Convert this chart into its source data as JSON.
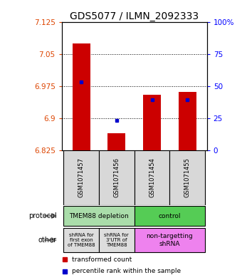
{
  "title": "GDS5077 / ILMN_2092333",
  "samples": [
    "GSM1071457",
    "GSM1071456",
    "GSM1071454",
    "GSM1071455"
  ],
  "red_values": [
    7.075,
    6.865,
    6.955,
    6.962
  ],
  "blue_values": [
    6.985,
    6.895,
    6.943,
    6.943
  ],
  "ymin": 6.825,
  "ymax": 7.125,
  "yticks_left": [
    7.125,
    7.05,
    6.975,
    6.9,
    6.825
  ],
  "yticks_right_vals": [
    100,
    75,
    50,
    25,
    0
  ],
  "yticks_right_labels": [
    "100%",
    "75",
    "50",
    "25",
    "0"
  ],
  "bar_color": "#cc0000",
  "blue_color": "#0000cc",
  "sample_bg_color": "#d8d8d8",
  "prot_depletion_color": "#aaddaa",
  "prot_control_color": "#55cc55",
  "other_gray_color": "#dddddd",
  "other_pink_color": "#ee82ee",
  "legend_red_label": "transformed count",
  "legend_blue_label": "percentile rank within the sample",
  "title_fontsize": 10,
  "tick_fontsize": 7.5,
  "label_fontsize": 7
}
